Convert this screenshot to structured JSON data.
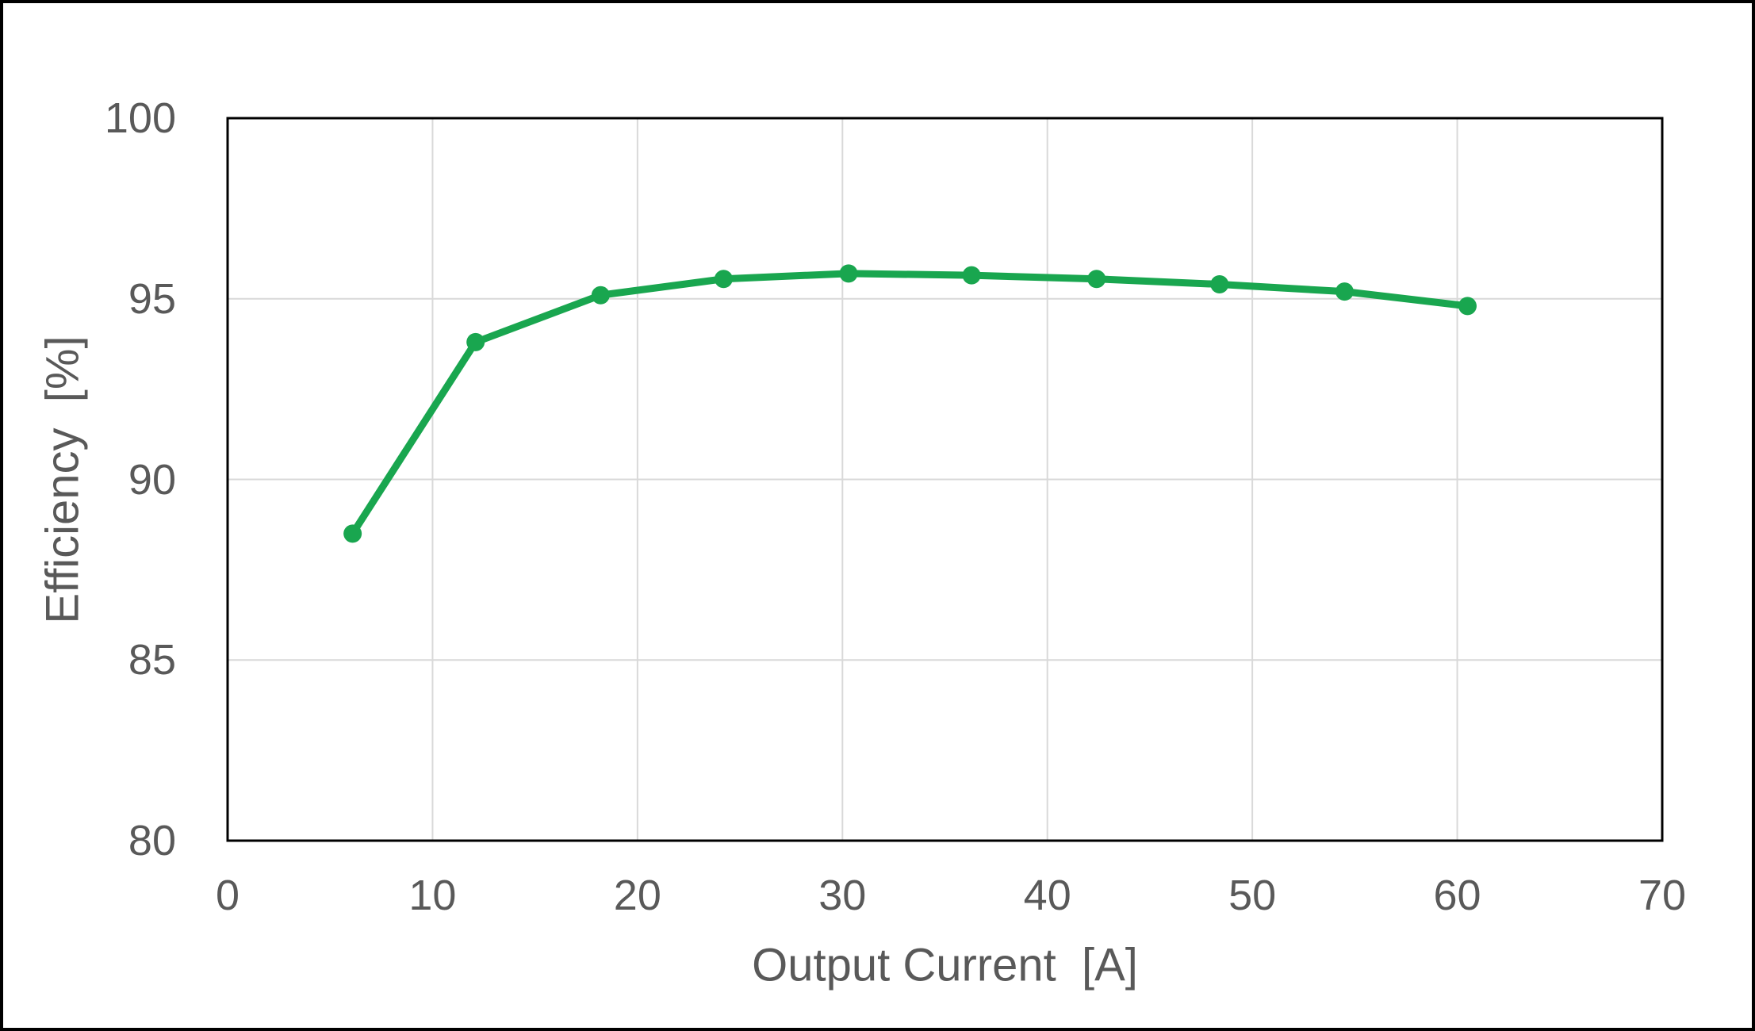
{
  "chart_data": {
    "type": "line",
    "title": "",
    "xlabel": "Output Current  [A]",
    "ylabel": "Efficiency  [%]",
    "x": [
      6.1,
      12.1,
      18.2,
      24.2,
      30.3,
      36.3,
      42.4,
      48.4,
      54.5,
      60.5
    ],
    "y": [
      88.5,
      93.8,
      95.1,
      95.55,
      95.7,
      95.65,
      95.55,
      95.4,
      95.2,
      94.8
    ],
    "xlim": [
      0,
      70
    ],
    "ylim": [
      80,
      100
    ],
    "x_ticks": [
      0,
      10,
      20,
      30,
      40,
      50,
      60,
      70
    ],
    "y_ticks": [
      80,
      85,
      90,
      95,
      100
    ],
    "grid": true,
    "legend": false,
    "marker": "circle",
    "colors": {
      "series": "#19A64F",
      "gridline": "#D9D9D9",
      "plot_border": "#000000",
      "outer_border": "#000000",
      "text": "#595959",
      "background": "#FFFFFF"
    }
  }
}
